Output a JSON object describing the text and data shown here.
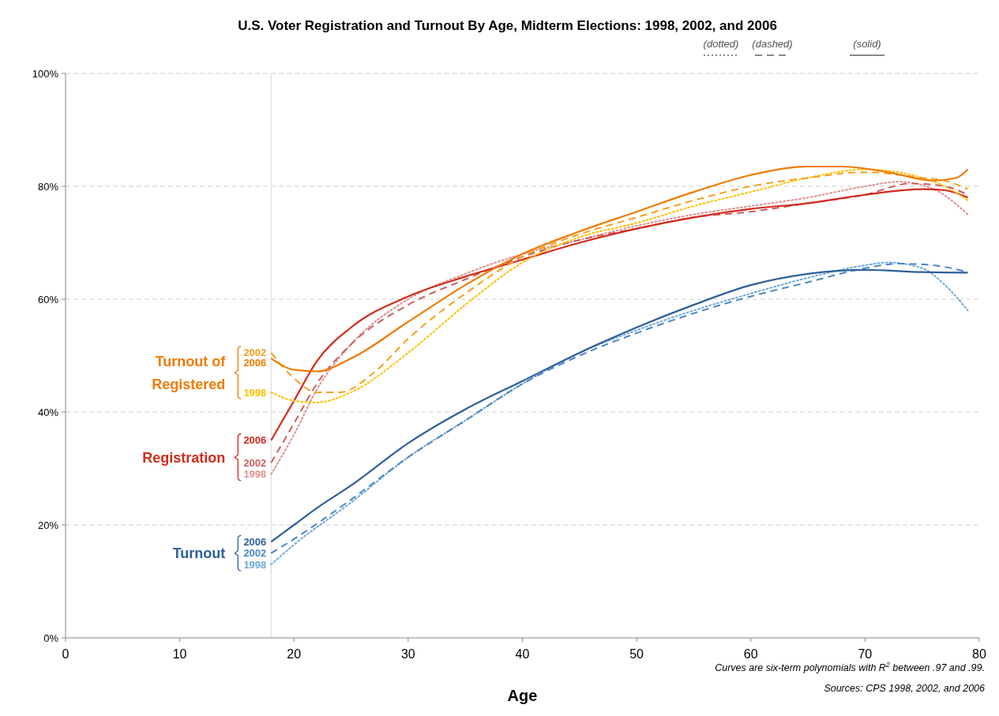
{
  "chart_data": {
    "type": "line",
    "title": "U.S. Voter Registration and Turnout By Age, Midterm Elections: 1998, 2002, and 2006",
    "xlabel": "Age",
    "xlim": [
      0,
      80
    ],
    "xticks": [
      0,
      10,
      20,
      30,
      40,
      50,
      60,
      70,
      80
    ],
    "ylim": [
      0,
      100
    ],
    "yticks": [
      {
        "value": 0,
        "label": "0%"
      },
      {
        "value": 20,
        "label": "20%"
      },
      {
        "value": 40,
        "label": "40%"
      },
      {
        "value": 60,
        "label": "60%"
      },
      {
        "value": 80,
        "label": "80%"
      },
      {
        "value": 100,
        "label": "100%"
      }
    ],
    "grid": "y",
    "ref_lines": [
      {
        "axis": "x",
        "value": 18,
        "color": "#d9d9d9"
      }
    ],
    "series": [
      {
        "name": "1998",
        "color": "#6fa8dc",
        "line_style": "dotted",
        "x": [
          18,
          20,
          25,
          30,
          35,
          40,
          45,
          50,
          55,
          60,
          65,
          70,
          72,
          75,
          77,
          79
        ],
        "values": [
          13,
          16.5,
          24,
          32,
          38.5,
          45,
          50.5,
          54.5,
          58,
          61,
          63.8,
          66,
          66.5,
          65.5,
          62.5,
          58
        ]
      },
      {
        "name": "2002",
        "color": "#4a86c8",
        "line_style": "dashed",
        "x": [
          18,
          20,
          25,
          30,
          35,
          40,
          45,
          50,
          55,
          60,
          65,
          70,
          73,
          76,
          79
        ],
        "values": [
          15,
          17.5,
          24.5,
          32,
          38.5,
          45,
          50,
          54,
          57.5,
          60.5,
          63,
          65.5,
          66.3,
          66,
          64.8
        ]
      },
      {
        "name": "2006",
        "color": "#2e5f9a",
        "line_style": "solid",
        "x": [
          18,
          20,
          22,
          25,
          30,
          35,
          40,
          45,
          50,
          55,
          60,
          65,
          70,
          75,
          79
        ],
        "values": [
          17,
          20,
          23,
          27,
          34.5,
          40.5,
          45.5,
          50.5,
          55,
          59,
          62.5,
          64.5,
          65.2,
          64.8,
          64.7
        ]
      },
      {
        "name": "1998",
        "color": "#e09090",
        "line_style": "dotted",
        "x": [
          18,
          20,
          22,
          25,
          30,
          35,
          40,
          45,
          50,
          55,
          60,
          65,
          70,
          73,
          76,
          79
        ],
        "values": [
          29,
          36,
          44,
          52,
          60,
          64.5,
          68,
          70.5,
          73,
          75,
          76.5,
          78,
          80,
          80.8,
          79.5,
          75
        ]
      },
      {
        "name": "2002",
        "color": "#c96060",
        "line_style": "dashed",
        "x": [
          18,
          20,
          22,
          25,
          30,
          35,
          40,
          45,
          50,
          55,
          60,
          65,
          70,
          74,
          77,
          79
        ],
        "values": [
          31,
          38,
          45,
          52,
          59,
          63.5,
          67.5,
          70.5,
          72.5,
          74.5,
          75.5,
          77,
          78.5,
          80.5,
          80,
          78.5
        ]
      },
      {
        "name": "2006",
        "color": "#d42a1a",
        "line_style": "solid",
        "x": [
          18,
          20,
          22,
          25,
          30,
          35,
          40,
          45,
          50,
          55,
          60,
          65,
          70,
          75,
          77,
          79
        ],
        "values": [
          35,
          42,
          49,
          55,
          60.5,
          64,
          67,
          70,
          72.5,
          74.5,
          76,
          77,
          78.5,
          79.5,
          79.3,
          78
        ]
      },
      {
        "name": "1998",
        "color": "#ffc000",
        "line_style": "dotted",
        "x": [
          18,
          20,
          22,
          25,
          30,
          35,
          40,
          45,
          50,
          55,
          60,
          65,
          70,
          75,
          77,
          79
        ],
        "values": [
          43.5,
          42,
          41.7,
          43.5,
          50.5,
          59,
          66.5,
          71,
          73.5,
          76.5,
          79,
          81.5,
          83,
          81.5,
          80,
          77.5
        ]
      },
      {
        "name": "2002",
        "color": "#f5a020",
        "line_style": "dashed",
        "x": [
          18,
          20,
          22,
          24,
          27,
          30,
          35,
          40,
          45,
          50,
          55,
          60,
          65,
          70,
          75,
          77,
          79
        ],
        "values": [
          50.5,
          46,
          43.5,
          43.5,
          47,
          53,
          61,
          67.5,
          71.5,
          74.5,
          77.5,
          80,
          81.5,
          82.5,
          81.5,
          81,
          79.5
        ]
      },
      {
        "name": "2006",
        "color": "#f07b00",
        "line_style": "solid",
        "x": [
          18,
          20,
          22,
          25,
          30,
          35,
          40,
          45,
          50,
          55,
          60,
          65,
          68,
          72,
          76,
          78,
          79
        ],
        "values": [
          49.5,
          47.5,
          47.2,
          49.5,
          56,
          62.5,
          68,
          72,
          75.5,
          79,
          82,
          83.5,
          83.5,
          82.5,
          81,
          81.5,
          83
        ]
      }
    ],
    "annotations": [
      "(dotted)",
      "(dashed)",
      "(solid)",
      "Turnout",
      "Registration",
      "Turnout of Registered",
      "Curves are six-term polynomials with R$^{2}$ between .97 and .99.",
      "Sources:  CPS 1998, 2002, and 2006"
    ]
  }
}
